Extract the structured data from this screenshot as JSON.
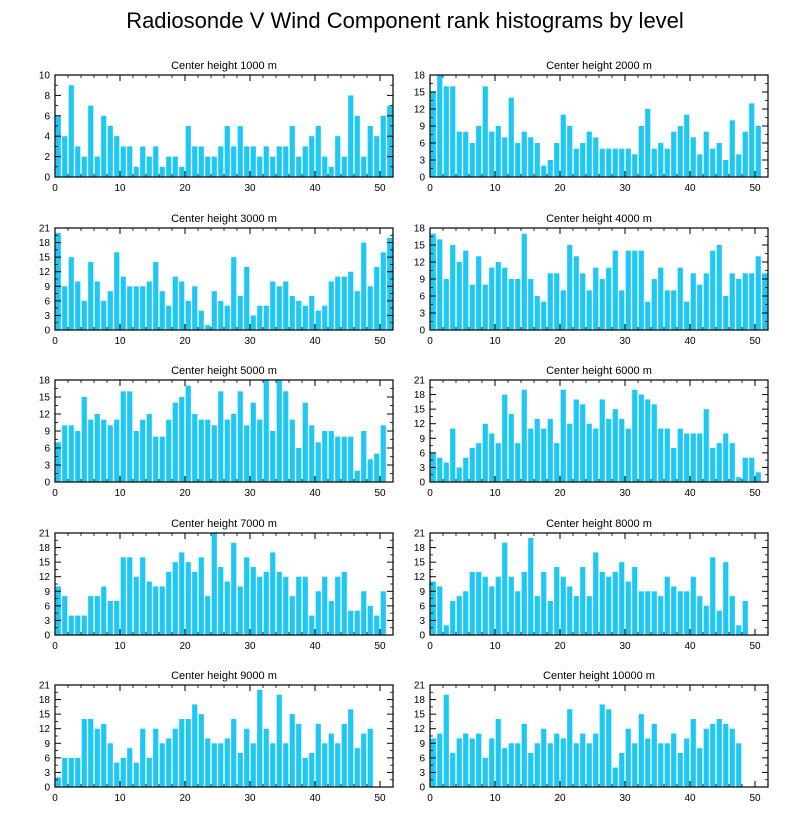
{
  "title": "Radiosonde V Wind Component rank histograms by level",
  "colors": {
    "bar": "#1ec8f5",
    "axis": "#000000",
    "background": "#ffffff"
  },
  "chart_data": [
    {
      "type": "bar",
      "title": "Center height 1000 m",
      "xlabel": "",
      "ylabel": "",
      "x_start": 0,
      "xlim": [
        0,
        52
      ],
      "ylim": [
        0,
        10
      ],
      "yticks": [
        0,
        2,
        4,
        6,
        8,
        10
      ],
      "xticks": [
        0,
        10,
        20,
        30,
        40,
        50
      ],
      "values": [
        6,
        4,
        9,
        3,
        2,
        7,
        2,
        6,
        5,
        4,
        3,
        3,
        1,
        3,
        2,
        3,
        1,
        2,
        2,
        1,
        5,
        3,
        3,
        2,
        2,
        3,
        5,
        3,
        5,
        3,
        3,
        2,
        3,
        2,
        3,
        3,
        5,
        2,
        3,
        4,
        5,
        2,
        1,
        4,
        2,
        8,
        6,
        2,
        5,
        4,
        6,
        7
      ]
    },
    {
      "type": "bar",
      "title": "Center height 2000 m",
      "xlabel": "",
      "ylabel": "",
      "x_start": 0,
      "xlim": [
        0,
        52
      ],
      "ylim": [
        0,
        18
      ],
      "yticks": [
        0,
        3,
        6,
        9,
        12,
        15,
        18
      ],
      "xticks": [
        0,
        10,
        20,
        30,
        40,
        50
      ],
      "values": [
        15,
        18,
        16,
        16,
        8,
        8,
        6,
        9,
        16,
        8,
        9,
        7,
        14,
        6,
        8,
        7,
        6,
        2,
        3,
        6,
        11,
        9,
        5,
        6,
        8,
        7,
        5,
        5,
        5,
        5,
        5,
        4,
        9,
        12,
        5,
        6,
        5,
        8,
        9,
        11,
        7,
        4,
        8,
        5,
        6,
        3,
        10,
        4,
        8,
        13,
        9,
        0
      ]
    },
    {
      "type": "bar",
      "title": "Center height 3000 m",
      "xlabel": "",
      "ylabel": "",
      "x_start": 0,
      "xlim": [
        0,
        52
      ],
      "ylim": [
        0,
        21
      ],
      "yticks": [
        0,
        3,
        6,
        9,
        12,
        15,
        18,
        21
      ],
      "xticks": [
        0,
        10,
        20,
        30,
        40,
        50
      ],
      "values": [
        20,
        9,
        15,
        10,
        6,
        14,
        10,
        6,
        8,
        16,
        11,
        9,
        9,
        9,
        10,
        14,
        8,
        5,
        11,
        10,
        6,
        9,
        4,
        1,
        8,
        6,
        5,
        15,
        7,
        13,
        3,
        5,
        5,
        10,
        9,
        10,
        7,
        6,
        5,
        7,
        4,
        5,
        10,
        11,
        11,
        12,
        8,
        18,
        9,
        13,
        16,
        19
      ]
    },
    {
      "type": "bar",
      "title": "Center height 4000 m",
      "xlabel": "",
      "ylabel": "",
      "x_start": 0,
      "xlim": [
        0,
        52
      ],
      "ylim": [
        0,
        18
      ],
      "yticks": [
        0,
        3,
        6,
        9,
        12,
        15,
        18
      ],
      "xticks": [
        0,
        10,
        20,
        30,
        40,
        50
      ],
      "values": [
        17,
        16,
        9,
        15,
        12,
        14,
        8,
        13,
        8,
        11,
        12,
        11,
        9,
        9,
        17,
        9,
        6,
        5,
        10,
        10,
        7,
        15,
        13,
        10,
        7,
        11,
        9,
        11,
        14,
        7,
        14,
        14,
        14,
        5,
        9,
        11,
        7,
        7,
        11,
        5,
        10,
        8,
        10,
        14,
        15,
        6,
        10,
        9,
        10,
        10,
        13,
        10
      ]
    },
    {
      "type": "bar",
      "title": "Center height 5000 m",
      "xlabel": "",
      "ylabel": "",
      "x_start": 0,
      "xlim": [
        0,
        52
      ],
      "ylim": [
        0,
        18
      ],
      "yticks": [
        0,
        3,
        6,
        9,
        12,
        15,
        18
      ],
      "xticks": [
        0,
        10,
        20,
        30,
        40,
        50
      ],
      "values": [
        7,
        10,
        10,
        9,
        15,
        11,
        12,
        11,
        10,
        11,
        16,
        16,
        9,
        11,
        12,
        8,
        8,
        11,
        14,
        15,
        17,
        12,
        11,
        11,
        10,
        16,
        11,
        12,
        16,
        10,
        14,
        11,
        18,
        9,
        18,
        16,
        11,
        6,
        14,
        10,
        7,
        9,
        9,
        8,
        8,
        8,
        2,
        9,
        4,
        5,
        10,
        0
      ]
    },
    {
      "type": "bar",
      "title": "Center height 6000 m",
      "xlabel": "",
      "ylabel": "",
      "x_start": 0,
      "xlim": [
        0,
        52
      ],
      "ylim": [
        0,
        21
      ],
      "yticks": [
        0,
        3,
        6,
        9,
        12,
        15,
        18,
        21
      ],
      "xticks": [
        0,
        10,
        20,
        30,
        40,
        50
      ],
      "values": [
        6,
        5,
        4,
        11,
        3,
        5,
        7,
        8,
        12,
        10,
        8,
        18,
        14,
        8,
        19,
        11,
        13,
        11,
        13,
        8,
        19,
        12,
        17,
        16,
        12,
        11,
        17,
        13,
        15,
        13,
        11,
        19,
        18,
        17,
        16,
        11,
        11,
        7,
        11,
        10,
        10,
        10,
        15,
        7,
        8,
        10,
        8,
        1,
        5,
        5,
        2,
        0
      ]
    },
    {
      "type": "bar",
      "title": "Center height 7000 m",
      "xlabel": "",
      "ylabel": "",
      "x_start": 0,
      "xlim": [
        0,
        52
      ],
      "ylim": [
        0,
        21
      ],
      "yticks": [
        0,
        3,
        6,
        9,
        12,
        15,
        18,
        21
      ],
      "xticks": [
        0,
        10,
        20,
        30,
        40,
        50
      ],
      "values": [
        10,
        8,
        4,
        4,
        4,
        8,
        8,
        10,
        7,
        7,
        16,
        16,
        12,
        16,
        11,
        10,
        10,
        13,
        15,
        17,
        15,
        13,
        16,
        8,
        21,
        14,
        11,
        19,
        10,
        16,
        14,
        12,
        13,
        17,
        13,
        12,
        8,
        12,
        12,
        4,
        9,
        12,
        7,
        12,
        13,
        5,
        5,
        9,
        6,
        4,
        9,
        0
      ]
    },
    {
      "type": "bar",
      "title": "Center height 8000 m",
      "xlabel": "",
      "ylabel": "",
      "x_start": 0,
      "xlim": [
        0,
        52
      ],
      "ylim": [
        0,
        21
      ],
      "yticks": [
        0,
        3,
        6,
        9,
        12,
        15,
        18,
        21
      ],
      "xticks": [
        0,
        10,
        20,
        30,
        40,
        50
      ],
      "values": [
        11,
        10,
        2,
        7,
        8,
        9,
        13,
        13,
        12,
        10,
        12,
        19,
        12,
        9,
        13,
        20,
        8,
        13,
        7,
        14,
        12,
        10,
        8,
        14,
        8,
        17,
        13,
        12,
        13,
        15,
        11,
        14,
        9,
        9,
        9,
        8,
        12,
        10,
        9,
        9,
        12,
        8,
        6,
        16,
        5,
        15,
        8,
        2,
        7,
        0,
        0,
        0
      ]
    },
    {
      "type": "bar",
      "title": "Center height 9000 m",
      "xlabel": "",
      "ylabel": "",
      "x_start": 0,
      "xlim": [
        0,
        52
      ],
      "ylim": [
        0,
        21
      ],
      "yticks": [
        0,
        3,
        6,
        9,
        12,
        15,
        18,
        21
      ],
      "xticks": [
        0,
        10,
        20,
        30,
        40,
        50
      ],
      "values": [
        2,
        6,
        6,
        6,
        14,
        14,
        12,
        13,
        9,
        5,
        6,
        8,
        5,
        12,
        6,
        12,
        9,
        10,
        12,
        14,
        14,
        17,
        15,
        10,
        9,
        9,
        10,
        14,
        7,
        12,
        9,
        20,
        12,
        9,
        19,
        9,
        15,
        13,
        6,
        7,
        13,
        9,
        11,
        9,
        13,
        16,
        8,
        11,
        12,
        0,
        0,
        0
      ]
    },
    {
      "type": "bar",
      "title": "Center height 10000 m",
      "xlabel": "",
      "ylabel": "",
      "x_start": 0,
      "xlim": [
        0,
        52
      ],
      "ylim": [
        0,
        21
      ],
      "yticks": [
        0,
        3,
        6,
        9,
        12,
        15,
        18,
        21
      ],
      "xticks": [
        0,
        10,
        20,
        30,
        40,
        50
      ],
      "values": [
        10,
        11,
        19,
        7,
        10,
        11,
        10,
        11,
        6,
        10,
        14,
        8,
        9,
        9,
        13,
        7,
        9,
        12,
        9,
        11,
        10,
        16,
        9,
        11,
        9,
        11,
        17,
        16,
        4,
        7,
        12,
        9,
        15,
        10,
        13,
        9,
        9,
        11,
        7,
        10,
        14,
        8,
        12,
        13,
        14,
        13,
        12,
        9,
        0,
        0,
        0,
        0
      ]
    }
  ]
}
